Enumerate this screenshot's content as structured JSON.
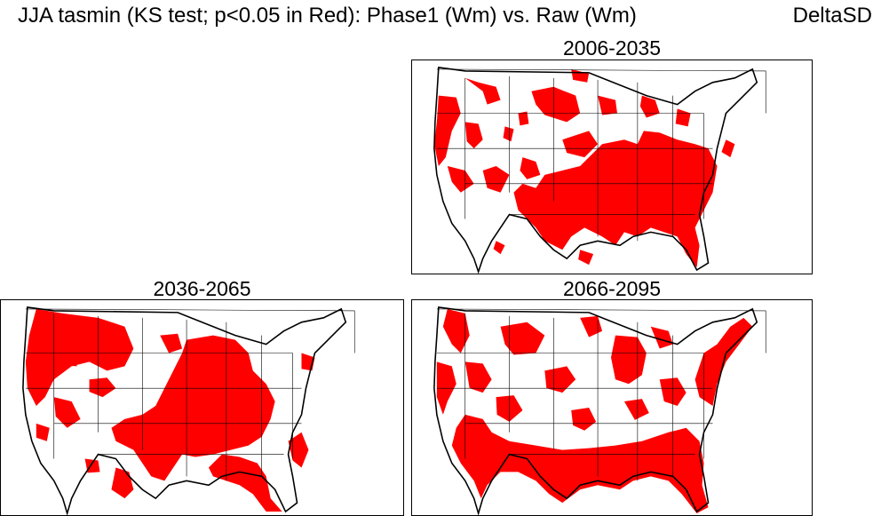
{
  "title": "JJA  tasmin (KS test; p<0.05 in Red): Phase1 (Wm) vs. Raw (Wm)",
  "corner_label": "DeltaSD",
  "significance_color": "#ff0000",
  "boundary_color": "#000000",
  "panels": [
    {
      "title": "2006-2035",
      "coverage": "red over most of the central and eastern U.S. and scattered Pacific Northwest and West Coast areas"
    },
    {
      "title": "2036-2065",
      "coverage": "red over most of the Pacific Northwest, Great Plains, Midwest and Southeast"
    },
    {
      "title": "2066-2095",
      "coverage": "red over the Southeast, Gulf Coast, Northeast and much of the West"
    }
  ]
}
